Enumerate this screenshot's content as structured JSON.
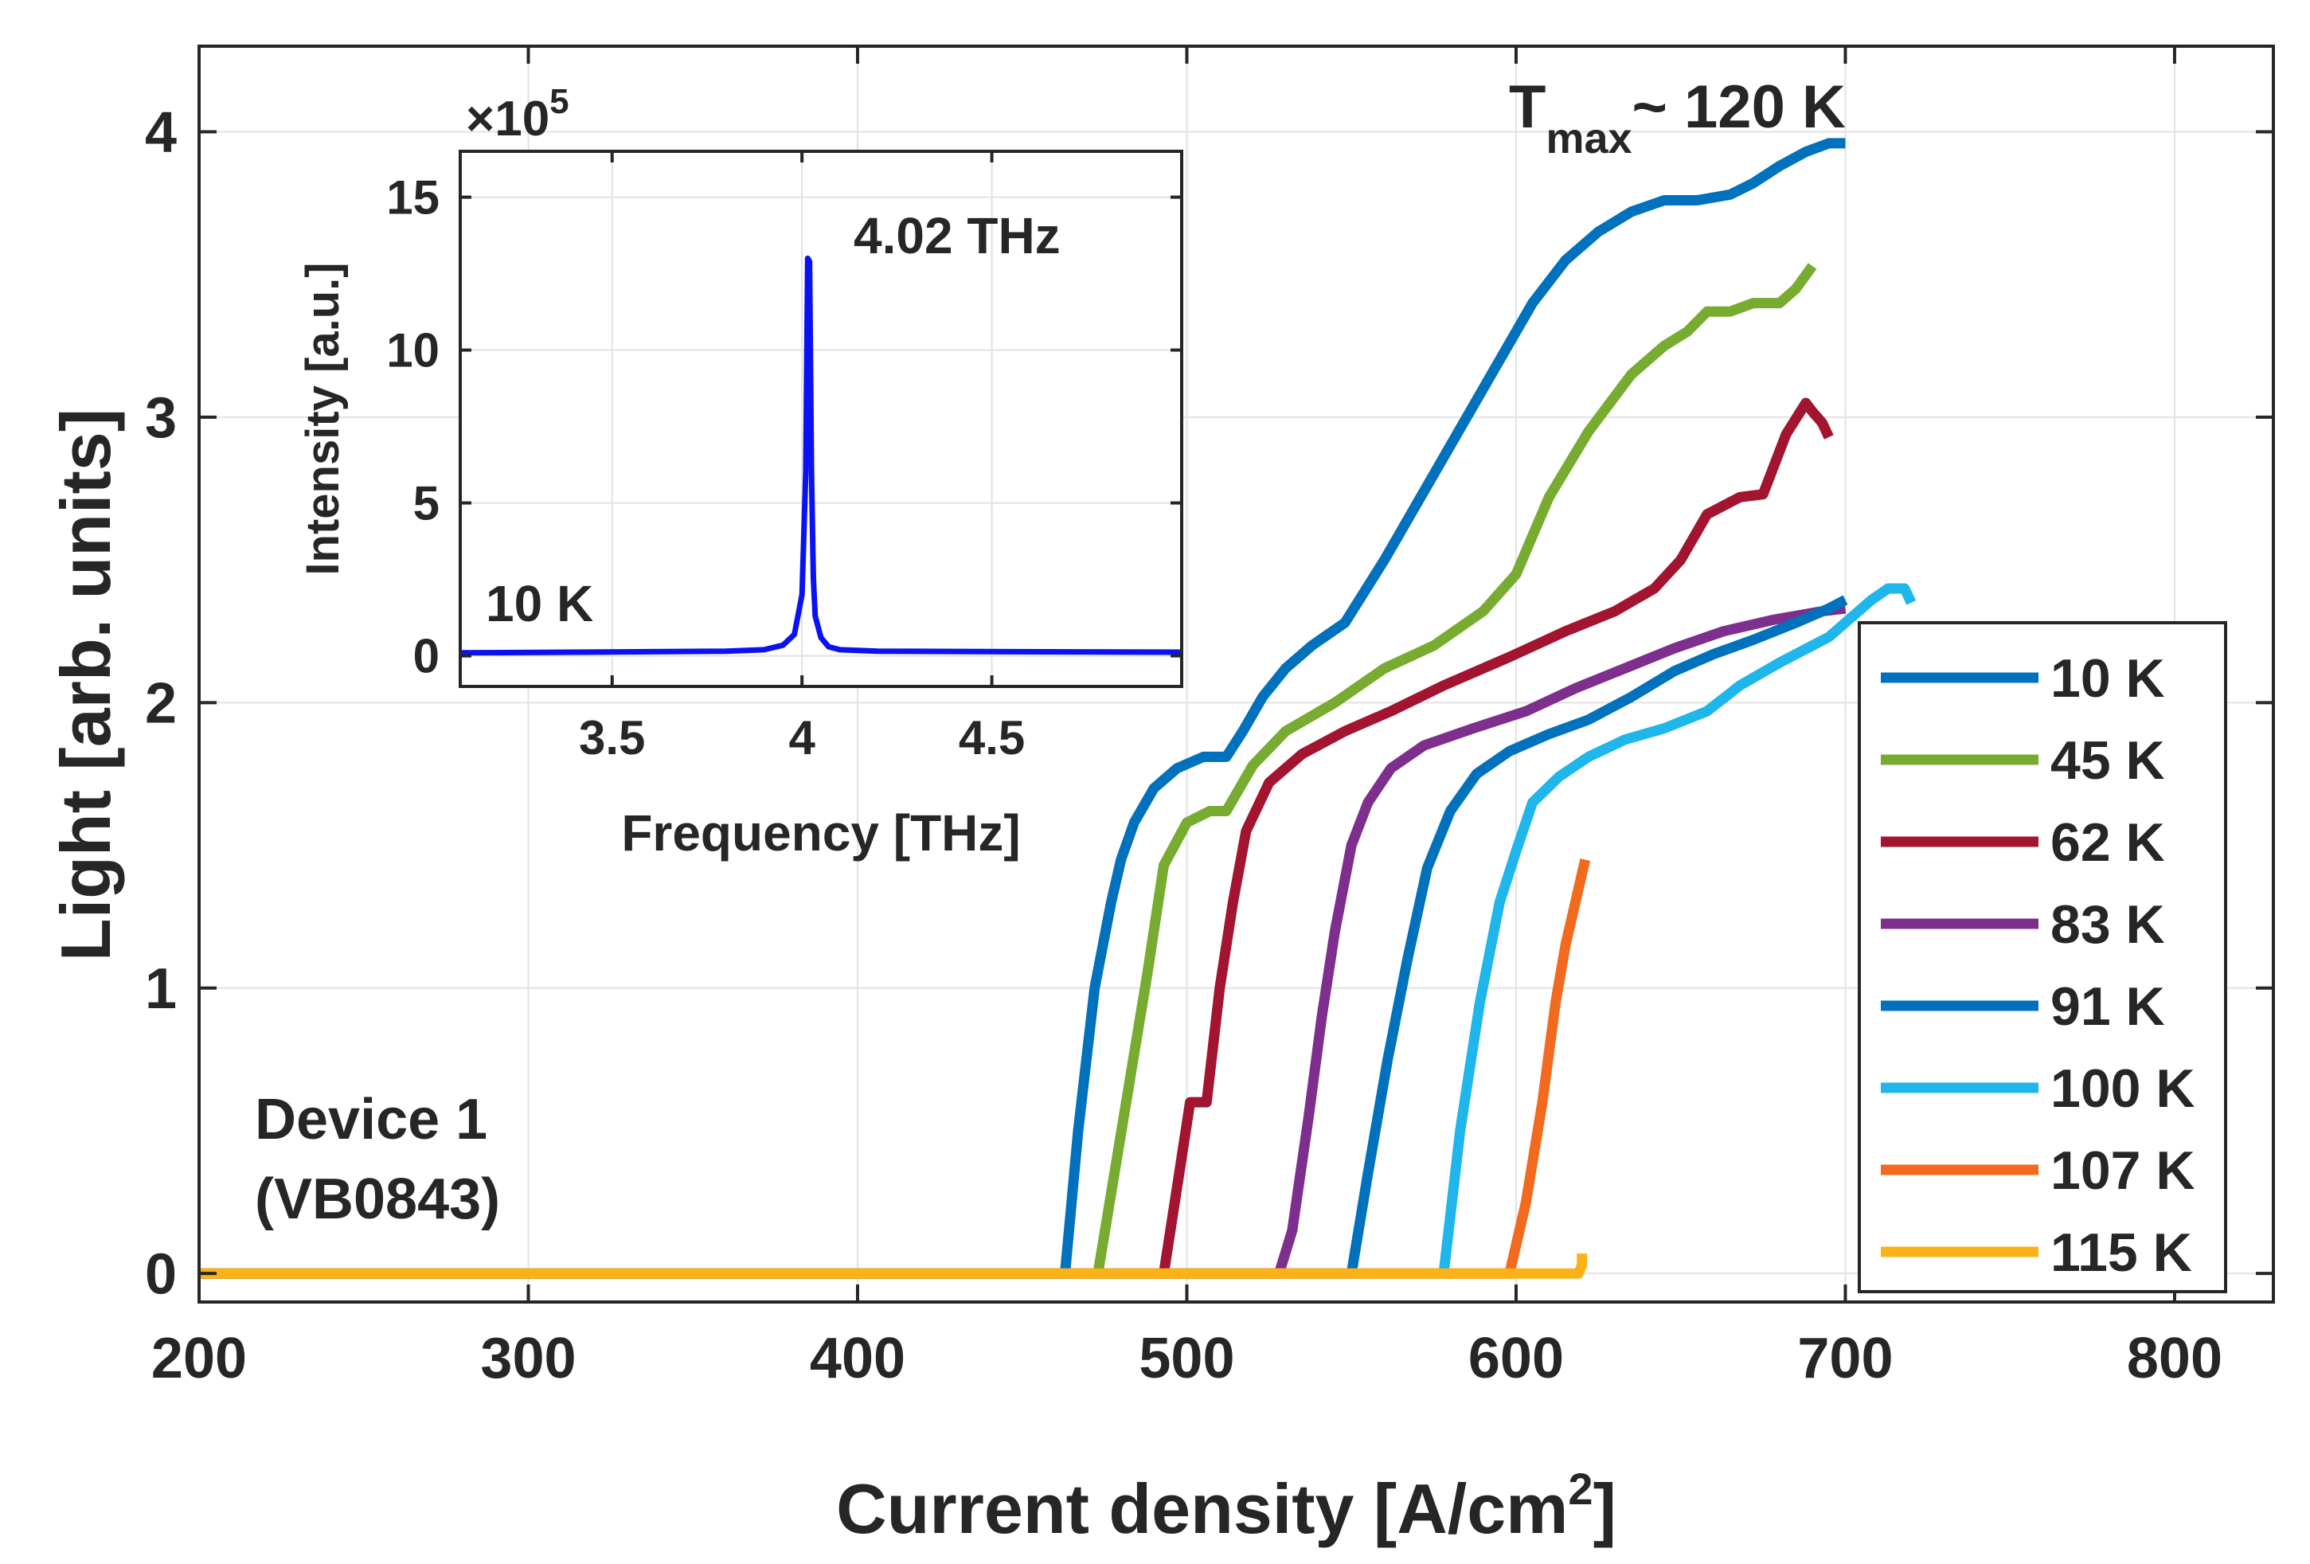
{
  "chart_data": [
    {
      "id": "main",
      "type": "line",
      "title": "",
      "xlabel_main": "Current density [A/cm",
      "xlabel_sup": "2",
      "xlabel_end": "]",
      "ylabel": "Light [arb. units]",
      "xlim": [
        200,
        830
      ],
      "ylim": [
        -0.1,
        4.3
      ],
      "xticks": [
        200,
        300,
        400,
        500,
        600,
        700,
        800
      ],
      "yticks": [
        0,
        1,
        2,
        3,
        4
      ],
      "grid": true,
      "legend_position": "bottom-right",
      "annotations": {
        "tmax_main": "T",
        "tmax_sub": "max",
        "tmax_rest": "~ 120 K",
        "device_line1": "Device 1",
        "device_line2": "(VB0843)"
      },
      "series": [
        {
          "name": "10 K",
          "color": "#0072BD",
          "x": [
            200,
            463,
            467,
            472,
            477,
            480,
            484,
            490,
            497,
            505,
            512,
            517,
            523,
            530,
            538,
            548,
            560,
            575,
            590,
            605,
            615,
            625,
            635,
            645,
            655,
            665,
            672,
            680,
            688,
            695,
            700
          ],
          "y": [
            0,
            0,
            0.5,
            1.0,
            1.3,
            1.45,
            1.58,
            1.7,
            1.77,
            1.81,
            1.81,
            1.9,
            2.02,
            2.12,
            2.2,
            2.28,
            2.5,
            2.8,
            3.1,
            3.4,
            3.55,
            3.65,
            3.72,
            3.76,
            3.76,
            3.78,
            3.82,
            3.88,
            3.93,
            3.96,
            3.96
          ]
        },
        {
          "name": "45 K",
          "color": "#77AC30",
          "x": [
            200,
            473,
            478,
            483,
            488,
            493,
            500,
            507,
            512,
            520,
            530,
            545,
            560,
            575,
            590,
            600,
            610,
            622,
            635,
            645,
            652,
            658,
            665,
            672,
            680,
            685,
            690
          ],
          "y": [
            0,
            0,
            0.35,
            0.7,
            1.05,
            1.43,
            1.58,
            1.62,
            1.62,
            1.78,
            1.9,
            2.0,
            2.12,
            2.2,
            2.32,
            2.45,
            2.72,
            2.95,
            3.15,
            3.25,
            3.3,
            3.37,
            3.37,
            3.4,
            3.4,
            3.45,
            3.53
          ]
        },
        {
          "name": "62 K",
          "color": "#A2142F",
          "x": [
            200,
            493,
            497,
            501,
            506,
            510,
            514,
            518,
            525,
            535,
            548,
            562,
            578,
            598,
            615,
            630,
            642,
            650,
            658,
            668,
            675,
            682,
            688,
            690,
            693,
            695
          ],
          "y": [
            0,
            0,
            0.3,
            0.6,
            0.6,
            1.0,
            1.3,
            1.55,
            1.72,
            1.82,
            1.9,
            1.97,
            2.06,
            2.16,
            2.25,
            2.32,
            2.4,
            2.5,
            2.66,
            2.72,
            2.73,
            2.94,
            3.05,
            3.02,
            2.98,
            2.93
          ]
        },
        {
          "name": "83 K",
          "color": "#7E2F8E",
          "x": [
            200,
            528,
            532,
            537,
            541,
            545,
            550,
            555,
            562,
            572,
            587,
            603,
            618,
            633,
            648,
            663,
            678,
            693,
            700
          ],
          "y": [
            0,
            0,
            0.15,
            0.55,
            0.9,
            1.2,
            1.5,
            1.65,
            1.77,
            1.85,
            1.91,
            1.97,
            2.05,
            2.12,
            2.19,
            2.25,
            2.29,
            2.32,
            2.33
          ]
        },
        {
          "name": "91 K",
          "color": "#0072BD",
          "x": [
            200,
            550,
            555,
            561,
            567,
            573,
            580,
            588,
            598,
            610,
            622,
            635,
            648,
            660,
            672,
            685,
            695,
            700
          ],
          "y": [
            0,
            0,
            0.35,
            0.75,
            1.1,
            1.42,
            1.62,
            1.75,
            1.83,
            1.89,
            1.94,
            2.02,
            2.11,
            2.17,
            2.22,
            2.28,
            2.33,
            2.36
          ]
        },
        {
          "name": "100 K",
          "color": "#1EB6EB",
          "x": [
            200,
            578,
            583,
            589,
            595,
            600,
            605,
            613,
            622,
            633,
            645,
            658,
            668,
            680,
            695,
            708,
            713,
            718,
            720
          ],
          "y": [
            0,
            0,
            0.5,
            0.95,
            1.3,
            1.48,
            1.65,
            1.74,
            1.81,
            1.87,
            1.91,
            1.97,
            2.06,
            2.14,
            2.23,
            2.36,
            2.4,
            2.4,
            2.35
          ]
        },
        {
          "name": "107 K",
          "color": "#F26A1E",
          "x": [
            200,
            598,
            603,
            608,
            612,
            615,
            618,
            621
          ],
          "y": [
            0,
            0,
            0.25,
            0.6,
            0.95,
            1.15,
            1.3,
            1.45
          ]
        },
        {
          "name": "115 K",
          "color": "#FBB217",
          "x": [
            200,
            619,
            620,
            620
          ],
          "y": [
            0,
            0,
            0.03,
            0.07
          ]
        }
      ]
    },
    {
      "id": "inset",
      "type": "line",
      "xlabel": "Frequency [THz]",
      "ylabel": "Intensity [a.u.]",
      "xlim": [
        3.1,
        5.0
      ],
      "ylim": [
        -1,
        16.5
      ],
      "xticks": [
        3.5,
        4,
        4.5
      ],
      "yticks": [
        0,
        5,
        10,
        15
      ],
      "xtick_labels": [
        "3.5",
        "4",
        "4.5"
      ],
      "ytick_labels": [
        "0",
        "5",
        "10",
        "15"
      ],
      "y_scale_label": "×10",
      "y_scale_exp": "5",
      "grid": true,
      "annotations": {
        "peak": "4.02 THz",
        "temperature": "10 K"
      },
      "series": [
        {
          "name": "10 K spectrum",
          "color": "#0B12F2",
          "x": [
            3.1,
            3.8,
            3.9,
            3.95,
            3.98,
            4.0,
            4.01,
            4.015,
            4.02,
            4.025,
            4.03,
            4.035,
            4.05,
            4.07,
            4.1,
            4.2,
            5.0
          ],
          "y": [
            0.1,
            0.15,
            0.2,
            0.35,
            0.7,
            2.0,
            6.0,
            13.0,
            12.9,
            6.0,
            2.5,
            1.3,
            0.6,
            0.3,
            0.2,
            0.15,
            0.12
          ]
        }
      ]
    }
  ]
}
